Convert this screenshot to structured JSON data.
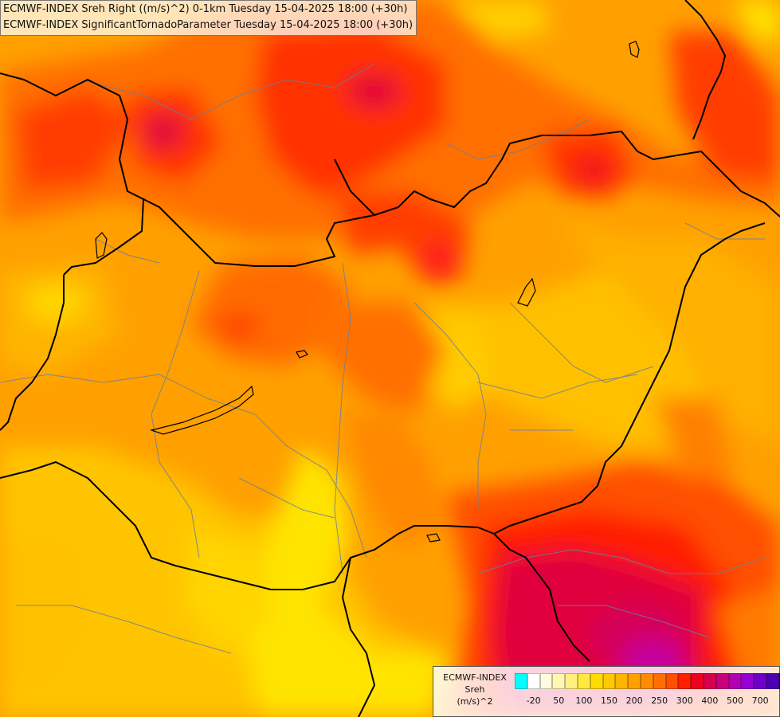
{
  "title_lines": [
    "ECMWF-INDEX Sreh Right ((m/s)^2) 0-1km Tuesday 15-04-2025 18:00 (+30h)",
    "ECMWF-INDEX SignificantTornadoParameter Tuesday 15-04-2025 18:00 (+30h)"
  ],
  "legend": {
    "title_lines": [
      "ECMWF-INDEX",
      "Sreh",
      "(m/s)^2"
    ],
    "colors": [
      "#00ffff",
      "#ffffff",
      "#fffbe0",
      "#fff6b4",
      "#fff080",
      "#ffe840",
      "#ffdc00",
      "#ffc800",
      "#ffb400",
      "#ffa000",
      "#ff8c00",
      "#ff7000",
      "#ff5000",
      "#ff2000",
      "#f00020",
      "#d8004c",
      "#c8007c",
      "#b400b4",
      "#9600d2",
      "#7000c8",
      "#4c00b4",
      "#200096"
    ],
    "tick_labels": [
      "-20",
      "50",
      "100",
      "150",
      "200",
      "250",
      "300",
      "400",
      "500",
      "700"
    ],
    "tick_indices": [
      1,
      3,
      5,
      7,
      9,
      11,
      13,
      15,
      17,
      19
    ]
  }
}
